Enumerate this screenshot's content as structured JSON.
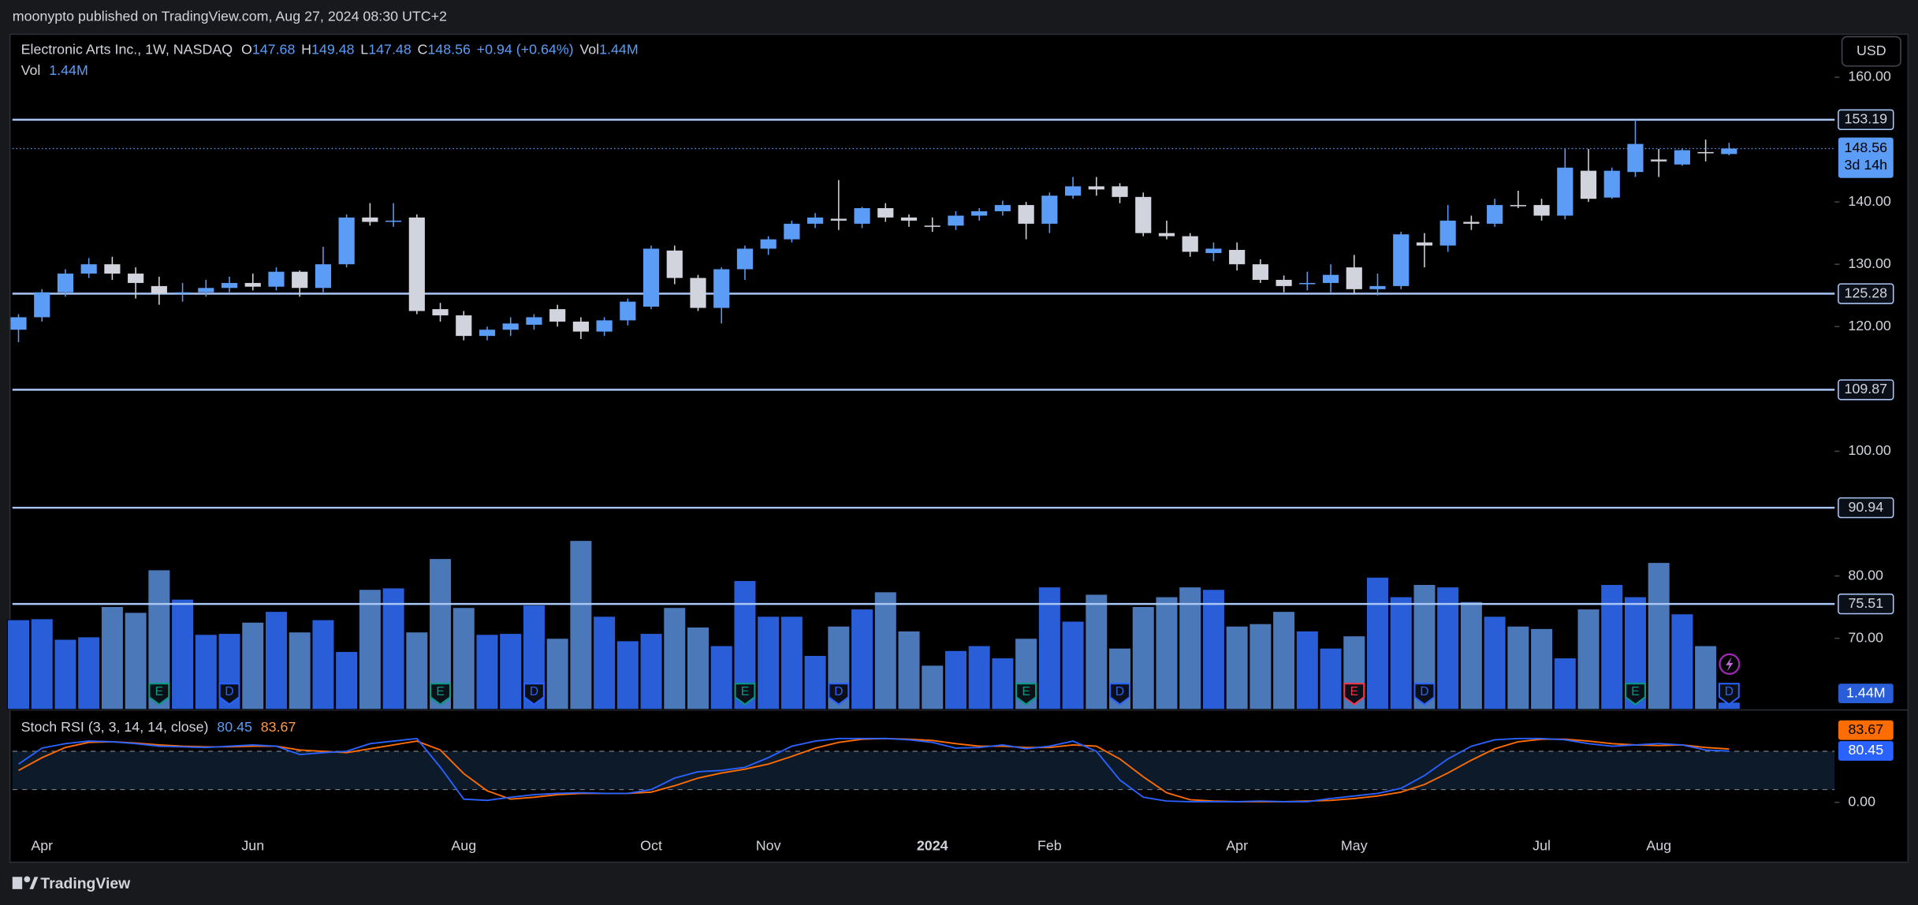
{
  "header": {
    "published": "moonypto published on TradingView.com, Aug 27, 2024 08:30 UTC+2",
    "symbol": "Electronic Arts Inc., 1W, NASDAQ",
    "o": "O",
    "h": "H",
    "l": "L",
    "c": "C",
    "change": "+0.94 (+0.64%)",
    "vol": "Vol",
    "vol_value": "1.44M",
    "brand": "TradingView"
  },
  "chart_data": {
    "type": "candlestick",
    "categories": [
      null,
      "Apr",
      null,
      null,
      null,
      null,
      null,
      null,
      null,
      null,
      "Jun",
      null,
      null,
      null,
      null,
      null,
      null,
      null,
      null,
      "Aug",
      null,
      null,
      null,
      null,
      null,
      null,
      null,
      "Oct",
      null,
      null,
      null,
      null,
      "Nov",
      null,
      null,
      null,
      null,
      null,
      null,
      "2024",
      null,
      null,
      null,
      null,
      "Feb",
      null,
      null,
      null,
      null,
      null,
      null,
      null,
      "Apr",
      null,
      null,
      null,
      null,
      "May",
      null,
      null,
      null,
      null,
      null,
      null,
      null,
      "Jul",
      null,
      null,
      null,
      null,
      "Aug",
      null,
      null,
      null
    ],
    "open": [
      119.5,
      121.5,
      125.5,
      128.5,
      130.0,
      128.5,
      126.5,
      125.3,
      125.5,
      126.2,
      127.0,
      126.4,
      128.8,
      126.2,
      130.0,
      137.5,
      136.8,
      137.5,
      122.8,
      121.8,
      118.5,
      119.5,
      120.3,
      122.8,
      120.8,
      119.2,
      121.0,
      123.2,
      132.2,
      127.8,
      123.0,
      129.2,
      132.5,
      134.0,
      136.5,
      137.3,
      136.5,
      139.0,
      137.5,
      136.2,
      136.2,
      137.8,
      138.5,
      139.5,
      136.5,
      141.0,
      142.5,
      142.5,
      140.8,
      135.0,
      134.5,
      131.8,
      132.3,
      130.0,
      127.5,
      126.8,
      127.0,
      129.5,
      126.0,
      126.5,
      133.5,
      133.0,
      136.8,
      136.5,
      139.5,
      139.5,
      137.8,
      145.0,
      140.7,
      144.8,
      146.8,
      146.0,
      148.0,
      147.68
    ],
    "high": [
      122.0,
      126.0,
      129.2,
      131.0,
      131.2,
      129.5,
      128.0,
      127.0,
      127.5,
      128.0,
      128.5,
      129.5,
      129.0,
      132.8,
      138.0,
      139.8,
      139.8,
      138.0,
      123.8,
      122.5,
      120.0,
      121.5,
      122.0,
      123.5,
      121.5,
      121.5,
      124.5,
      133.0,
      133.0,
      128.3,
      129.5,
      133.0,
      134.5,
      137.0,
      138.2,
      143.5,
      139.2,
      139.8,
      138.0,
      137.5,
      138.5,
      139.0,
      140.2,
      140.0,
      141.5,
      144.0,
      144.0,
      143.0,
      141.5,
      137.0,
      135.0,
      133.5,
      133.5,
      130.8,
      128.2,
      128.8,
      130.0,
      131.5,
      128.5,
      135.2,
      135.0,
      139.5,
      137.8,
      140.5,
      141.8,
      140.5,
      148.5,
      148.5,
      145.5,
      153.19,
      148.5,
      148.5,
      150.0,
      149.48
    ],
    "low": [
      117.5,
      120.8,
      124.8,
      127.8,
      127.5,
      124.5,
      123.5,
      124.0,
      124.8,
      125.5,
      125.8,
      125.8,
      124.8,
      125.5,
      129.5,
      136.2,
      136.0,
      122.0,
      120.8,
      117.8,
      117.8,
      118.5,
      119.5,
      120.0,
      118.0,
      118.5,
      120.2,
      122.8,
      126.8,
      122.5,
      120.5,
      127.5,
      131.5,
      133.5,
      135.8,
      135.5,
      135.8,
      136.8,
      136.0,
      135.2,
      135.5,
      137.0,
      137.8,
      134.0,
      135.0,
      140.5,
      141.0,
      139.8,
      134.5,
      134.0,
      131.2,
      130.5,
      129.0,
      127.0,
      125.5,
      125.8,
      125.5,
      125.2,
      125.0,
      126.0,
      129.5,
      132.0,
      135.5,
      136.0,
      139.0,
      137.0,
      137.2,
      140.0,
      140.5,
      144.0,
      144.0,
      145.8,
      146.5,
      147.48
    ],
    "close": [
      121.5,
      125.5,
      128.5,
      130.0,
      128.5,
      127.0,
      125.3,
      125.5,
      126.2,
      127.0,
      126.4,
      128.8,
      126.2,
      130.0,
      137.5,
      136.8,
      137.0,
      122.5,
      121.8,
      118.5,
      119.5,
      120.5,
      121.5,
      120.8,
      119.2,
      121.0,
      124.0,
      132.5,
      127.8,
      123.0,
      129.2,
      132.5,
      134.0,
      136.5,
      137.5,
      137.0,
      139.0,
      137.5,
      137.0,
      136.0,
      137.8,
      138.5,
      139.5,
      136.5,
      141.0,
      142.5,
      142.0,
      140.8,
      135.0,
      134.5,
      132.0,
      132.5,
      130.0,
      127.5,
      126.5,
      127.0,
      128.3,
      126.0,
      126.5,
      134.8,
      133.0,
      137.0,
      136.5,
      139.5,
      139.4,
      137.8,
      145.5,
      140.5,
      145.0,
      149.3,
      146.5,
      148.3,
      147.8,
      148.56
    ],
    "up_color": "#5b9cf6",
    "down_color": "#d1d4dc",
    "ylim": [
      58.6,
      166.9
    ],
    "yticks": [
      {
        "value": 160,
        "label": "160.00"
      },
      {
        "value": 140,
        "label": "140.00"
      },
      {
        "value": 130,
        "label": "130.00"
      },
      {
        "value": 120,
        "label": "120.00"
      },
      {
        "value": 100,
        "label": "100.00"
      },
      {
        "value": 80,
        "label": "80.00"
      },
      {
        "value": 70,
        "label": "70.00"
      }
    ],
    "levels": [
      153.19,
      125.28,
      109.87,
      90.94,
      75.51
    ],
    "level_color": "#a9c6f5",
    "countdown": "3d 14h",
    "currency": "USD",
    "volume": {
      "values": [
        18.3,
        18.5,
        14.3,
        14.8,
        21,
        19.8,
        28.5,
        22.5,
        15.3,
        15.5,
        17.8,
        20,
        15.8,
        18.3,
        11.8,
        24.5,
        24.8,
        15.8,
        30.8,
        20.8,
        15.3,
        15.5,
        21.3,
        14.5,
        34.5,
        19,
        14,
        15.5,
        20.8,
        16.8,
        13,
        26.3,
        19,
        19,
        11,
        17,
        20.5,
        24,
        16,
        9,
        12,
        13,
        10.5,
        14.5,
        25,
        18,
        23.5,
        12.5,
        21,
        23,
        25,
        24.5,
        17,
        17.5,
        20,
        16,
        12.5,
        15,
        27,
        23,
        25.5,
        25,
        22,
        19,
        17,
        16.5,
        10.5,
        20.5,
        25.5,
        23,
        30,
        19.5,
        13,
        1.44
      ],
      "ylim": [
        0,
        40
      ],
      "label": "1.44M",
      "up_color": "#2a5ed8",
      "down_color": "#4a78b8"
    },
    "events": [
      {
        "label": "E",
        "index": 6,
        "color": "#089981"
      },
      {
        "label": "D",
        "index": 9,
        "color": "#2962ff"
      },
      {
        "label": "E",
        "index": 18,
        "color": "#089981"
      },
      {
        "label": "D",
        "index": 22,
        "color": "#2962ff"
      },
      {
        "label": "E",
        "index": 31,
        "color": "#089981"
      },
      {
        "label": "D",
        "index": 35,
        "color": "#2962ff"
      },
      {
        "label": "E",
        "index": 43,
        "color": "#089981"
      },
      {
        "label": "D",
        "index": 47,
        "color": "#2962ff"
      },
      {
        "label": "E",
        "index": 57,
        "color": "#f23645"
      },
      {
        "label": "D",
        "index": 60,
        "color": "#2962ff"
      },
      {
        "label": "E",
        "index": 69,
        "color": "#089981"
      },
      {
        "label": "D",
        "index": 73,
        "color": "#2962ff"
      }
    ],
    "stoch": {
      "title": "Stoch RSI (3, 3, 14, 14, close)",
      "k": [
        60,
        85,
        92,
        96,
        95,
        92,
        88,
        87,
        86,
        88,
        90,
        88,
        75,
        78,
        80,
        92,
        96,
        100,
        55,
        5,
        3,
        8,
        12,
        14,
        15,
        14,
        14,
        20,
        38,
        48,
        50,
        55,
        70,
        88,
        96,
        100,
        100,
        100,
        98,
        94,
        85,
        86,
        90,
        84,
        88,
        96,
        80,
        35,
        8,
        2,
        1,
        1,
        1,
        2,
        1,
        1,
        6,
        10,
        14,
        22,
        42,
        68,
        88,
        98,
        100,
        100,
        98,
        92,
        88,
        90,
        92,
        90,
        82,
        80.45
      ],
      "d": [
        50,
        70,
        86,
        94,
        95,
        93,
        90,
        88,
        87,
        87,
        88,
        88,
        82,
        80,
        78,
        84,
        90,
        96,
        82,
        45,
        18,
        5,
        8,
        12,
        14,
        14,
        14,
        16,
        26,
        38,
        46,
        52,
        60,
        72,
        85,
        94,
        99,
        100,
        99,
        97,
        92,
        88,
        88,
        86,
        86,
        90,
        88,
        68,
        40,
        15,
        4,
        2,
        1,
        1,
        1,
        2,
        3,
        6,
        10,
        16,
        28,
        46,
        66,
        84,
        95,
        99,
        99,
        96,
        92,
        90,
        89,
        90,
        86,
        83.67
      ],
      "k_color": "#2962ff",
      "d_color": "#ff6d00",
      "ylim": [
        -92,
        142
      ],
      "yticks": [
        {
          "value": 0,
          "label": "0.00"
        }
      ],
      "bands": [
        80,
        20
      ]
    }
  }
}
